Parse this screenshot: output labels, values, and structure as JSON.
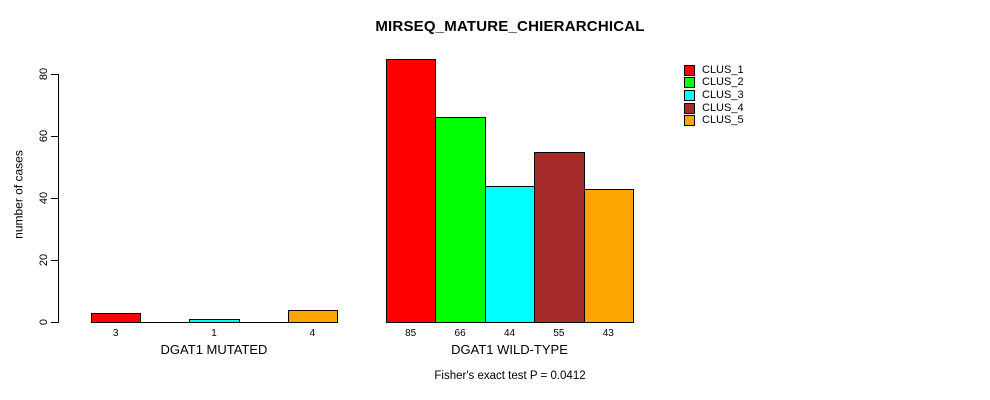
{
  "chart_data": {
    "type": "bar",
    "title": "MIRSEQ_MATURE_CHIERARCHICAL",
    "ylabel": "number of cases",
    "yticks": [
      0,
      20,
      40,
      60,
      80
    ],
    "ylim": [
      0,
      85
    ],
    "grid": false,
    "legend_position": "top-right",
    "background": "#FFFFFF",
    "axis_color": "#000000",
    "series": [
      {
        "name": "CLUS_1",
        "color": "#FF0000"
      },
      {
        "name": "CLUS_2",
        "color": "#00FF00"
      },
      {
        "name": "CLUS_3",
        "color": "#00FFFF"
      },
      {
        "name": "CLUS_4",
        "color": "#A52A2A"
      },
      {
        "name": "CLUS_5",
        "color": "#FFA500"
      }
    ],
    "groups": [
      {
        "label": "DGAT1 MUTATED",
        "values": [
          3,
          0,
          1,
          0,
          4
        ],
        "bar_labels": [
          "3",
          "",
          "1",
          "",
          "4"
        ]
      },
      {
        "label": "DGAT1 WILD-TYPE",
        "values": [
          85,
          66,
          44,
          55,
          43
        ],
        "bar_labels": [
          "85",
          "66",
          "44",
          "55",
          "43"
        ]
      }
    ],
    "annotation": "Fisher's exact test P = 0.0412"
  }
}
